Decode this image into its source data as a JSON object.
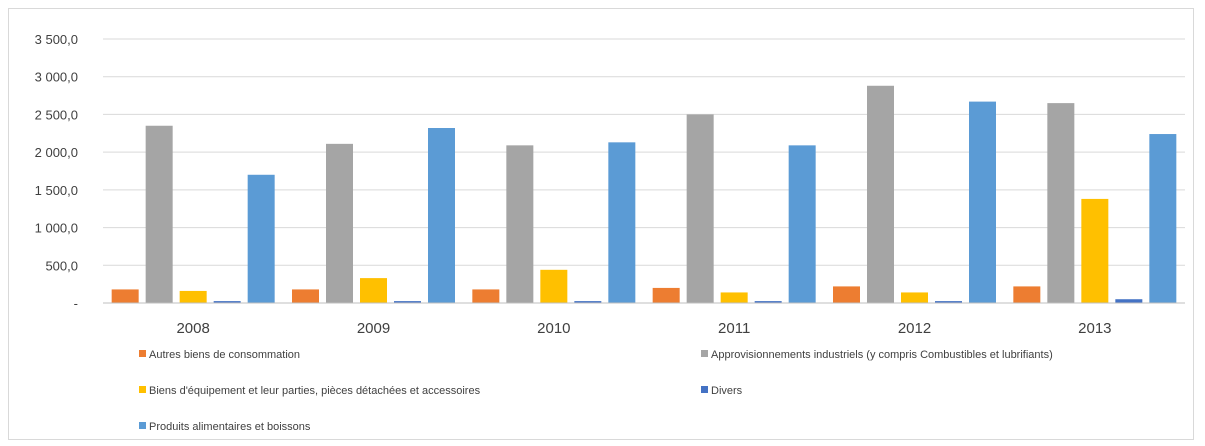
{
  "chart_data": {
    "type": "bar",
    "title": "",
    "xlabel": "",
    "ylabel": "",
    "categories": [
      "2008",
      "2009",
      "2010",
      "2011",
      "2012",
      "2013"
    ],
    "ylim": [
      0,
      3500
    ],
    "yticks": [
      0,
      500,
      1000,
      1500,
      2000,
      2500,
      3000,
      3500
    ],
    "ytick_labels": [
      "-",
      "500,0",
      "1 000,0",
      "1 500,0",
      "2 000,0",
      "2 500,0",
      "3 000,0",
      "3 500,0"
    ],
    "grid": true,
    "legend_position": "bottom",
    "series": [
      {
        "name": "Autres biens de consommation",
        "color": "#ed7d31",
        "values": [
          180,
          180,
          180,
          200,
          220,
          220
        ]
      },
      {
        "name": "Approvisionnements industriels (y compris Combustibles et lubrifiants)",
        "color": "#a5a5a5",
        "values": [
          2350,
          2110,
          2090,
          2500,
          2880,
          2650
        ]
      },
      {
        "name": "Biens d'équipement et leur parties, pièces détachées et accessoires",
        "color": "#ffc000",
        "values": [
          160,
          330,
          440,
          140,
          140,
          1380
        ]
      },
      {
        "name": "Divers",
        "color": "#4472c4",
        "values": [
          25,
          25,
          25,
          25,
          25,
          50
        ]
      },
      {
        "name": "Produits alimentaires et boissons",
        "color": "#5b9bd5",
        "values": [
          1700,
          2320,
          2130,
          2090,
          2670,
          2240
        ]
      }
    ]
  }
}
